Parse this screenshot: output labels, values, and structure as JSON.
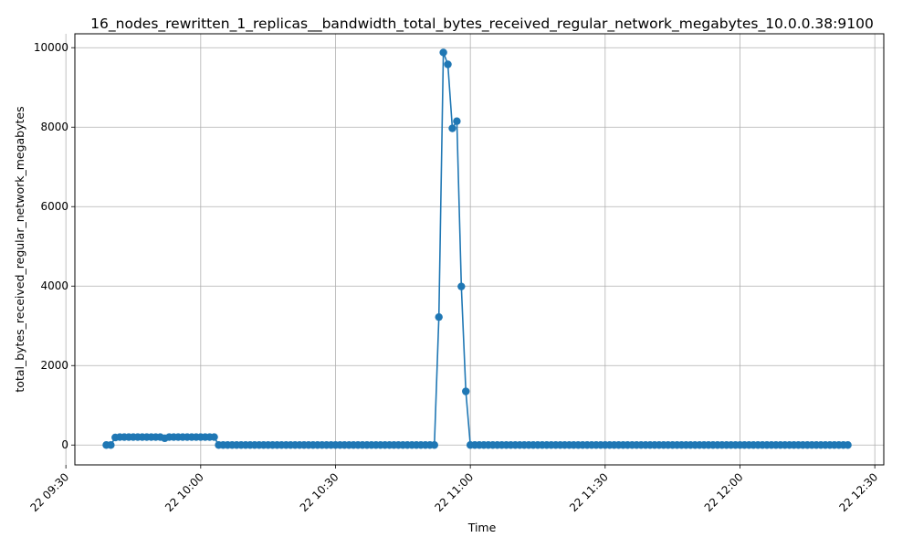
{
  "chart_data": {
    "type": "line",
    "title": "16_nodes_rewritten_1_replicas__bandwidth_total_bytes_received_regular_network_megabytes_10.0.0.38:9100",
    "xlabel": "Time",
    "ylabel": "total_bytes_received_regular_network_megabytes",
    "grid": true,
    "marker": "circle",
    "color": "#1f77b4",
    "xlim": [
      "2024-01-22T09:32:00",
      "2024-01-22T12:32:00"
    ],
    "ylim": [
      -500,
      10350
    ],
    "x_ticks": [
      "22 09:30",
      "22 10:00",
      "22 10:30",
      "22 11:00",
      "22 11:30",
      "22 12:00",
      "22 12:30"
    ],
    "y_ticks": [
      "0",
      "2000",
      "4000",
      "6000",
      "8000",
      "10000"
    ],
    "series": [
      {
        "x_start": "2024-01-22T09:39:00",
        "x_step_minutes": 1,
        "values": [
          0,
          0,
          190,
          200,
          200,
          200,
          200,
          200,
          200,
          200,
          200,
          200,
          200,
          170,
          200,
          200,
          200,
          200,
          200,
          200,
          200,
          200,
          200,
          200,
          200,
          0,
          0,
          0,
          0,
          0,
          0,
          0,
          0,
          0,
          0,
          0,
          0,
          0,
          0,
          0,
          0,
          0,
          0,
          0,
          0,
          0,
          0,
          0,
          0,
          0,
          0,
          0,
          0,
          0,
          0,
          0,
          0,
          0,
          0,
          0,
          0,
          0,
          0,
          0,
          0,
          0,
          0,
          0,
          0,
          0,
          0,
          0,
          0,
          0,
          3220,
          9880,
          9580,
          7970,
          8150,
          3990,
          1350,
          0,
          0,
          0,
          0,
          0,
          0,
          0,
          0,
          0,
          0,
          0,
          0,
          0,
          0,
          0,
          0,
          0,
          0,
          0,
          0,
          0,
          0,
          0,
          0,
          0,
          0,
          0,
          0,
          0,
          0,
          0,
          0,
          0,
          0,
          0,
          0,
          0,
          0,
          0,
          0,
          0,
          0,
          0,
          0,
          0,
          0,
          0,
          0,
          0,
          0,
          0,
          0,
          0,
          0,
          0,
          0,
          0,
          0,
          0,
          0,
          0,
          0,
          0,
          0,
          0,
          0,
          0,
          0,
          0,
          0,
          0,
          0,
          0,
          0,
          0,
          0,
          0,
          0,
          0,
          0,
          0,
          0,
          0,
          0,
          0
        ]
      }
    ]
  }
}
